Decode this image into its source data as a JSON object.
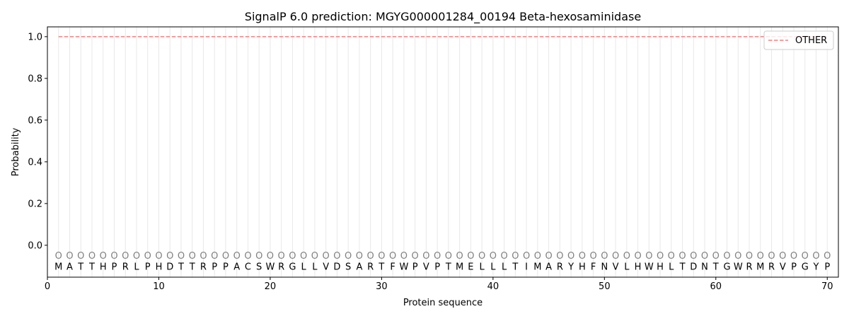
{
  "chart_data": {
    "type": "line",
    "title": "SignalP 6.0 prediction: MGYG000001284_00194 Beta-hexosaminidase",
    "xlabel": "Protein sequence",
    "ylabel": "Probability",
    "xlim": [
      0,
      71
    ],
    "ylim": [
      -0.153,
      1.047
    ],
    "xticks": [
      0,
      10,
      20,
      30,
      40,
      50,
      60,
      70
    ],
    "yticks": [
      0.0,
      0.2,
      0.4,
      0.6,
      0.8,
      1.0
    ],
    "ytick_labels": [
      "0.0",
      "0.2",
      "0.4",
      "0.6",
      "0.8",
      "1.0"
    ],
    "grid": "vertical lines at each residue",
    "legend_position": "top-right",
    "sequence": [
      "M",
      "A",
      "T",
      "T",
      "H",
      "P",
      "R",
      "L",
      "P",
      "H",
      "D",
      "T",
      "T",
      "R",
      "P",
      "P",
      "A",
      "C",
      "S",
      "W",
      "R",
      "G",
      "L",
      "L",
      "V",
      "D",
      "S",
      "A",
      "R",
      "T",
      "F",
      "W",
      "P",
      "V",
      "P",
      "T",
      "M",
      "E",
      "L",
      "L",
      "L",
      "T",
      "I",
      "M",
      "A",
      "R",
      "Y",
      "H",
      "F",
      "N",
      "V",
      "L",
      "H",
      "W",
      "H",
      "L",
      "T",
      "D",
      "N",
      "T",
      "G",
      "W",
      "R",
      "M",
      "R",
      "V",
      "P",
      "G",
      "Y",
      "P"
    ],
    "labels": [
      "O",
      "O",
      "O",
      "O",
      "O",
      "O",
      "O",
      "O",
      "O",
      "O",
      "O",
      "O",
      "O",
      "O",
      "O",
      "O",
      "O",
      "O",
      "O",
      "O",
      "O",
      "O",
      "O",
      "O",
      "O",
      "O",
      "O",
      "O",
      "O",
      "O",
      "O",
      "O",
      "O",
      "O",
      "O",
      "O",
      "O",
      "O",
      "O",
      "O",
      "O",
      "O",
      "O",
      "O",
      "O",
      "O",
      "O",
      "O",
      "O",
      "O",
      "O",
      "O",
      "O",
      "O",
      "O",
      "O",
      "O",
      "O",
      "O",
      "O",
      "O",
      "O",
      "O",
      "O",
      "O",
      "O",
      "O",
      "O",
      "O",
      "O"
    ],
    "series": [
      {
        "name": "OTHER",
        "color": "#f08080",
        "style": "dashed",
        "x_range": [
          1,
          70
        ],
        "value": 1.0
      }
    ]
  }
}
